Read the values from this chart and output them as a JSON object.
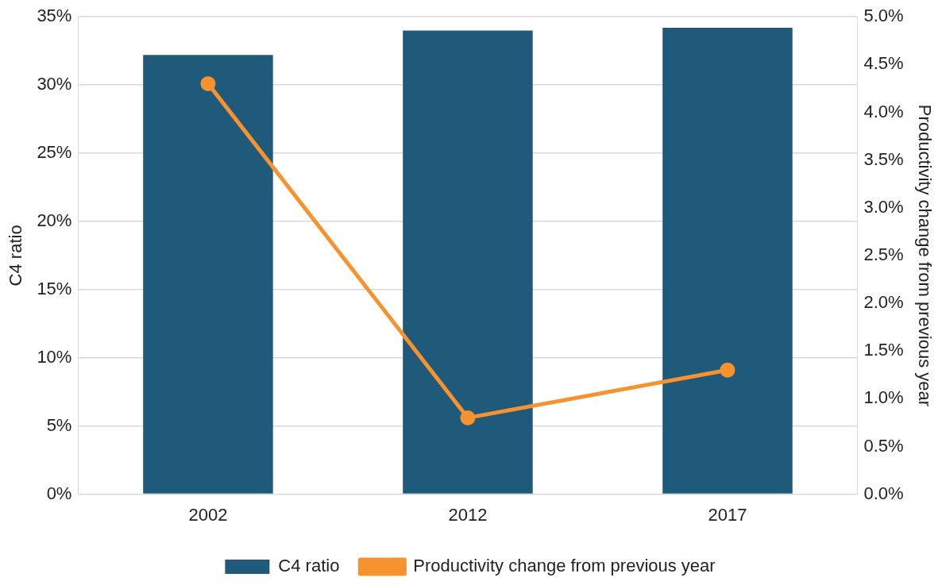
{
  "chart_data": {
    "type": "bar",
    "categories": [
      "2002",
      "2012",
      "2017"
    ],
    "ylabel": "C4 ratio",
    "y2label": "Productivity change from previous year",
    "series": [
      {
        "name": "C4 ratio",
        "color": "#1f5a7a",
        "values": [
          32.2,
          34.0,
          34.2
        ]
      },
      {
        "name": "Productivity change from previous year",
        "type": "line",
        "axis": "y2",
        "color": "#f7932f",
        "values": [
          4.3,
          0.8,
          1.3
        ],
        "marker": "circle",
        "line_style": "solid"
      }
    ],
    "ylim": [
      0,
      35
    ],
    "yticks": [
      {
        "value": 0,
        "label": "0%"
      },
      {
        "value": 5,
        "label": "5%"
      },
      {
        "value": 10,
        "label": "10%"
      },
      {
        "value": 15,
        "label": "15%"
      },
      {
        "value": 20,
        "label": "20%"
      },
      {
        "value": 25,
        "label": "25%"
      },
      {
        "value": 30,
        "label": "30%"
      },
      {
        "value": 35,
        "label": "35%"
      }
    ],
    "y2lim": [
      0,
      5
    ],
    "y2ticks": [
      {
        "value": 0,
        "label": "0.0%"
      },
      {
        "value": 0.5,
        "label": "0.5%"
      },
      {
        "value": 1,
        "label": "1.0%"
      },
      {
        "value": 1.5,
        "label": "1.5%"
      },
      {
        "value": 2,
        "label": "2.0%"
      },
      {
        "value": 2.5,
        "label": "2.5%"
      },
      {
        "value": 3,
        "label": "3.0%"
      },
      {
        "value": 3.5,
        "label": "3.5%"
      },
      {
        "value": 4,
        "label": "4.0%"
      },
      {
        "value": 4.5,
        "label": "4.5%"
      },
      {
        "value": 5,
        "label": "5.0%"
      }
    ],
    "grid": "y",
    "legend": "bottom"
  }
}
